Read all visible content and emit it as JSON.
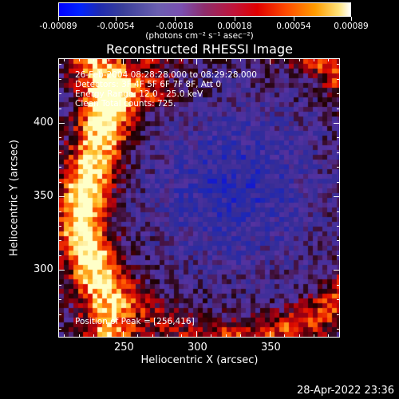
{
  "colorbar": {
    "ticks": [
      "-0.00089",
      "-0.00054",
      "-0.00018",
      "0.00018",
      "0.00054",
      "0.00089"
    ],
    "units": "(photons cm⁻² s⁻¹ asec⁻²)",
    "min": -0.00089,
    "max": 0.00089
  },
  "plot": {
    "title": "Reconstructed RHESSI Image",
    "info_lines": [
      "26-Feb-2004 08:28:28.000 to 08:29:28.000",
      "Detectors: 3F 4F 5F 6F 7F 8F, Att 0",
      "Energy Range: 12.0 - 25.0 keV",
      "Clean    Total counts: 725."
    ],
    "peak_text": "Position of Peak = [256,416]",
    "footer_date": "28-Apr-2022 23:36"
  },
  "chart_data": {
    "type": "heatmap",
    "title": "Reconstructed RHESSI Image",
    "xlabel": "Heliocentric X (arcsec)",
    "ylabel": "Heliocentric Y (arcsec)",
    "xlim": [
      206,
      398
    ],
    "ylim": [
      254,
      444
    ],
    "x_ticks": [
      250,
      300,
      350
    ],
    "y_ticks": [
      300,
      350,
      400
    ],
    "colorbar_range": [
      -0.00089,
      0.00089
    ],
    "colorbar_units": "(photons cm⁻² s⁻¹ asec⁻²)",
    "peak_position": [
      256,
      416
    ],
    "grid": false
  }
}
